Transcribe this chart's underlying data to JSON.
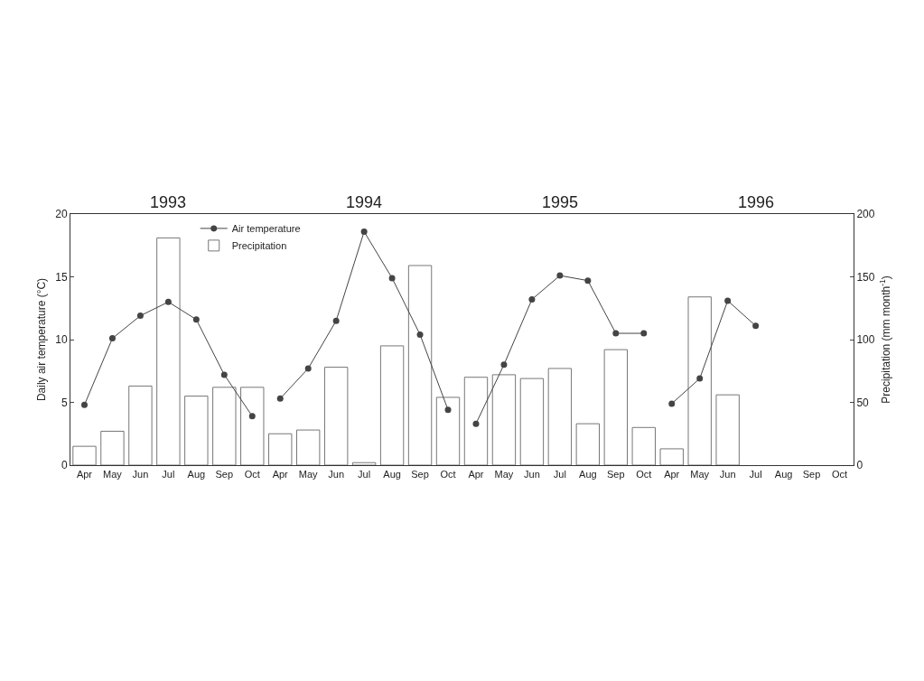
{
  "chart_data": {
    "type": "bar",
    "ylabel": "Daily air temperature (°C)",
    "y2label": "Precipitation (mm month$^{-1}$)",
    "categories": [
      "Apr",
      "May",
      "Jun",
      "Jul",
      "Aug",
      "Sep",
      "Oct",
      "Apr",
      "May",
      "Jun",
      "Jul",
      "Aug",
      "Sep",
      "Oct",
      "Apr",
      "May",
      "Jun",
      "Jul",
      "Aug",
      "Sep",
      "Oct",
      "Apr",
      "May",
      "Jun",
      "Jul",
      "Aug",
      "Sep",
      "Oct"
    ],
    "annotations": [
      "1993",
      "1994",
      "1995",
      "1996"
    ],
    "ylim": [
      0,
      20
    ],
    "yticks": [
      0,
      5,
      10,
      15,
      20
    ],
    "y2lim": [
      0,
      200
    ],
    "y2ticks": [
      0,
      50,
      100,
      150,
      200
    ],
    "legend": "top",
    "marker": "circle",
    "line_style": "solid",
    "grid": false,
    "series": [
      {
        "name": "Air temperature",
        "type": "line",
        "color": "#444444",
        "values": [
          4.8,
          10.1,
          11.9,
          13.0,
          11.6,
          7.2,
          3.9,
          null,
          null,
          null,
          null,
          null,
          null,
          null,
          null,
          null,
          null,
          null,
          null,
          null,
          null,
          null,
          null,
          null,
          null,
          null,
          null,
          null
        ]
      },
      {
        "type": "line",
        "color": "#444444",
        "values": [
          null,
          null,
          null,
          null,
          null,
          null,
          null,
          5.3,
          7.7,
          11.5,
          18.6,
          14.9,
          10.4,
          4.4,
          null,
          null,
          null,
          null,
          null,
          null,
          null,
          null,
          null,
          null,
          null,
          null,
          null,
          null
        ]
      },
      {
        "type": "line",
        "color": "#444444",
        "values": [
          null,
          null,
          null,
          null,
          null,
          null,
          null,
          null,
          null,
          null,
          null,
          null,
          null,
          null,
          3.3,
          8.0,
          13.2,
          15.1,
          14.7,
          10.5,
          10.5,
          null,
          null,
          null,
          null,
          null,
          null,
          null
        ]
      },
      {
        "type": "line",
        "color": "#444444",
        "values": [
          null,
          null,
          null,
          null,
          null,
          null,
          null,
          null,
          null,
          null,
          null,
          null,
          null,
          null,
          null,
          null,
          null,
          null,
          null,
          null,
          null,
          4.9,
          6.9,
          13.1,
          11.1,
          null,
          null,
          null
        ]
      },
      {
        "name": "Precipitation",
        "axis": "y2",
        "color": "#ffffff",
        "values": [
          15,
          27,
          63,
          181,
          55,
          62,
          62,
          25,
          28,
          78,
          2,
          95,
          159,
          54,
          70,
          72,
          69,
          77,
          33,
          92,
          30,
          13,
          134,
          56,
          null,
          null,
          null,
          null
        ]
      }
    ]
  }
}
